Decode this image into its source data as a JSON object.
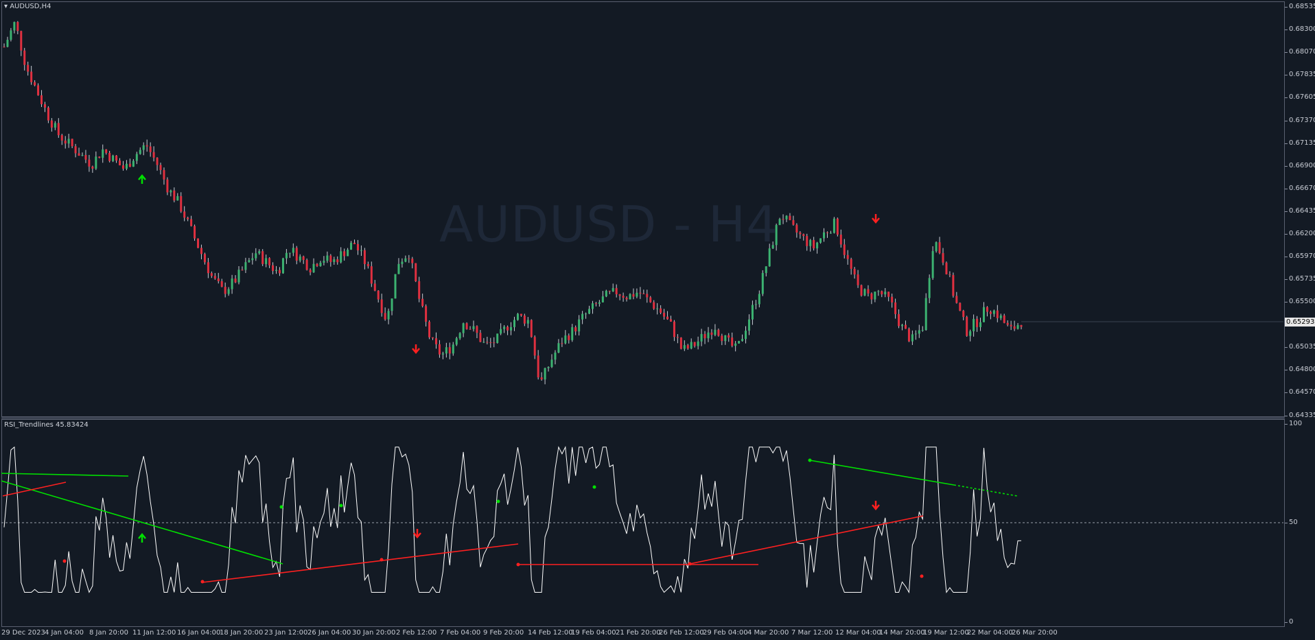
{
  "chart": {
    "symbol_label": "AUDUSD,H4",
    "watermark": "AUDUSD - H4",
    "current_price": "0.65293",
    "price_axis": [
      "0.68535",
      "0.68300",
      "0.68070",
      "0.67835",
      "0.67605",
      "0.67370",
      "0.67135",
      "0.66900",
      "0.66670",
      "0.66435",
      "0.66200",
      "0.65970",
      "0.65735",
      "0.65500",
      "0.65035",
      "0.64800",
      "0.64570",
      "0.64335"
    ],
    "time_axis": [
      "29 Dec 2023",
      "4 Jan 04:00",
      "8 Jan 20:00",
      "11 Jan 12:00",
      "16 Jan 04:00",
      "18 Jan 20:00",
      "23 Jan 12:00",
      "26 Jan 04:00",
      "30 Jan 20:00",
      "2 Feb 12:00",
      "7 Feb 04:00",
      "9 Feb 20:00",
      "14 Feb 12:00",
      "19 Feb 04:00",
      "21 Feb 20:00",
      "26 Feb 12:00",
      "29 Feb 04:00",
      "4 Mar 20:00",
      "7 Mar 12:00",
      "12 Mar 04:00",
      "14 Mar 20:00",
      "19 Mar 12:00",
      "22 Mar 04:00",
      "26 Mar 20:00"
    ],
    "colors": {
      "background": "#131a24",
      "bull": "#3cb371",
      "bear": "#e03040",
      "wick": "#c8ccd4",
      "rsi_line": "#ffffff",
      "trend_up": "#00e000",
      "trend_down": "#ff2020"
    }
  },
  "indicator": {
    "label": "RSI_Trendlines 45.83424",
    "levels": [
      "100",
      "50",
      "0"
    ]
  },
  "chart_data": {
    "type": "candlestick",
    "series": [
      {
        "name": "AUDUSD,H4",
        "close_path": [
          0.681,
          0.6835,
          0.679,
          0.6765,
          0.674,
          0.672,
          0.671,
          0.67,
          0.669,
          0.6705,
          0.6695,
          0.6685,
          0.67,
          0.671,
          0.669,
          0.6665,
          0.665,
          0.6625,
          0.66,
          0.6575,
          0.656,
          0.657,
          0.6585,
          0.66,
          0.659,
          0.658,
          0.6605,
          0.6595,
          0.6585,
          0.6595,
          0.659,
          0.66,
          0.661,
          0.659,
          0.656,
          0.653,
          0.659,
          0.66,
          0.655,
          0.651,
          0.6495,
          0.6505,
          0.653,
          0.652,
          0.6505,
          0.651,
          0.6525,
          0.6535,
          0.653,
          0.6465,
          0.649,
          0.651,
          0.652,
          0.6535,
          0.6545,
          0.6555,
          0.656,
          0.6555,
          0.656,
          0.655,
          0.654,
          0.6525,
          0.65,
          0.6505,
          0.6515,
          0.6525,
          0.651,
          0.65,
          0.653,
          0.656,
          0.66,
          0.664,
          0.6625,
          0.6615,
          0.6605,
          0.662,
          0.663,
          0.6595,
          0.6565,
          0.6555,
          0.656,
          0.655,
          0.6525,
          0.651,
          0.6525,
          0.6615,
          0.659,
          0.655,
          0.652,
          0.653,
          0.6545,
          0.6535,
          0.652,
          0.653
        ]
      }
    ],
    "rsi": {
      "name": "RSI_Trendlines",
      "value": 45.83424,
      "levels": [
        0,
        50,
        100
      ]
    },
    "ylim": [
      0.64335,
      0.68535
    ]
  }
}
